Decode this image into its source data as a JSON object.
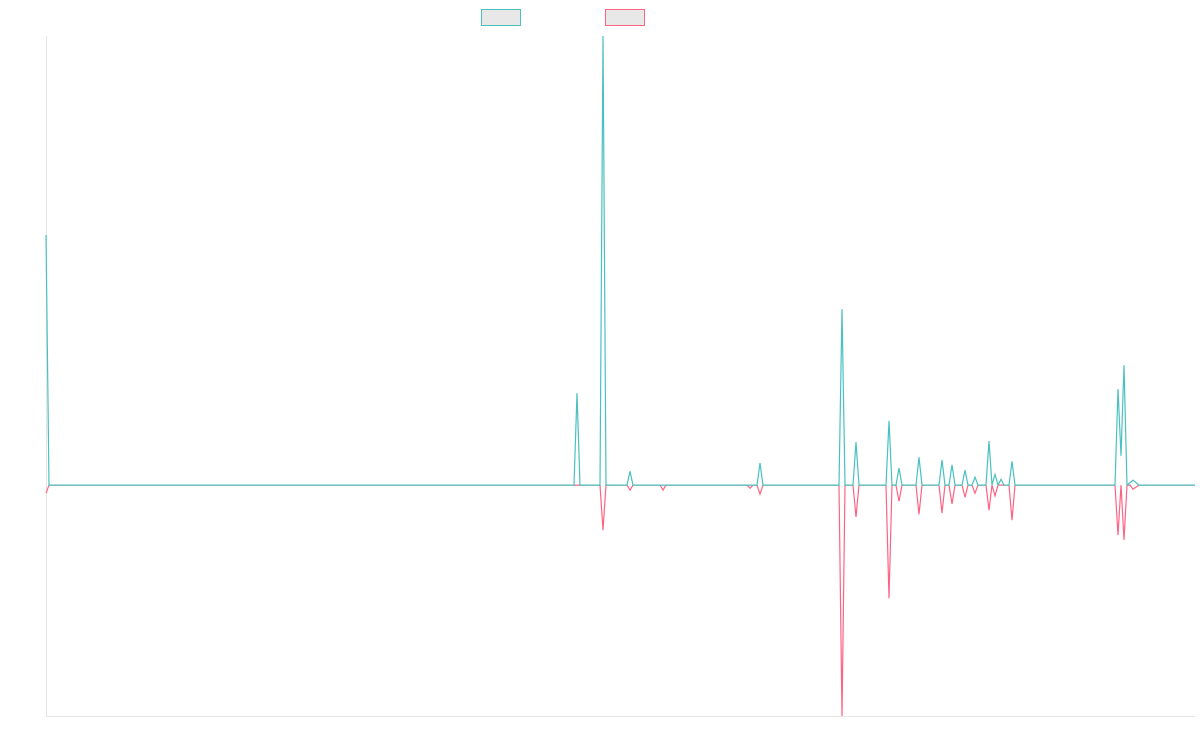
{
  "chart_data": {
    "type": "line",
    "xlim": [
      0,
      1149
    ],
    "ylim": [
      -51.4,
      100
    ],
    "series": [
      {
        "color": "#4bc0c0",
        "x": [
          0,
          3,
          528,
          531,
          534,
          554,
          557,
          560,
          581,
          584,
          587,
          711,
          714,
          717,
          793,
          796,
          799,
          807,
          810,
          813,
          840,
          843,
          846,
          850,
          853,
          856,
          870,
          873,
          876,
          893,
          896,
          899,
          903,
          906,
          909,
          916,
          919,
          922,
          926,
          929,
          932,
          940,
          943,
          946,
          949,
          952,
          955,
          958,
          963,
          966,
          969,
          1069,
          1072,
          1075,
          1078,
          1081,
          1087,
          1093,
          1149
        ],
        "values": [
          55.7,
          0,
          0,
          20.5,
          0,
          0,
          100,
          0,
          0,
          3.1,
          0,
          0,
          4.9,
          0,
          0,
          39.2,
          0,
          0,
          9.6,
          0,
          0,
          14.3,
          0,
          0,
          3.8,
          0,
          0,
          6.2,
          0,
          0,
          5.6,
          0,
          0,
          4.5,
          0,
          0,
          3.3,
          0,
          0,
          1.8,
          0,
          0,
          9.8,
          0,
          2.4,
          0,
          1.3,
          0,
          0,
          5.3,
          0,
          0,
          21.4,
          6.5,
          26.7,
          0,
          1.1,
          0,
          0
        ]
      },
      {
        "color": "#ff6384",
        "x": [
          0,
          3,
          554,
          557,
          560,
          581,
          584,
          587,
          614,
          617,
          620,
          701,
          704,
          707,
          711,
          714,
          717,
          793,
          796,
          799,
          807,
          810,
          813,
          840,
          843,
          846,
          850,
          853,
          856,
          870,
          873,
          876,
          893,
          896,
          899,
          903,
          906,
          909,
          916,
          919,
          922,
          926,
          929,
          932,
          940,
          943,
          946,
          949,
          952,
          963,
          966,
          969,
          1069,
          1072,
          1075,
          1078,
          1081,
          1084,
          1087,
          1093,
          1149
        ],
        "values": [
          -1.8,
          0,
          0,
          -10,
          0,
          0,
          -1.1,
          0,
          0,
          -1.1,
          0,
          0,
          -0.7,
          0,
          0,
          -2,
          0,
          0,
          -51.4,
          0,
          0,
          -7.1,
          0,
          0,
          -25.2,
          0,
          0,
          -3.6,
          0,
          0,
          -6.5,
          0,
          0,
          -6.2,
          0,
          0,
          -4.2,
          0,
          0,
          -2.7,
          0,
          0,
          -1.8,
          0,
          0,
          -5.6,
          0,
          -2.4,
          0,
          0,
          -7.8,
          0,
          0,
          -11.1,
          0,
          -12.2,
          0,
          0,
          -0.9,
          0,
          0
        ]
      }
    ]
  }
}
